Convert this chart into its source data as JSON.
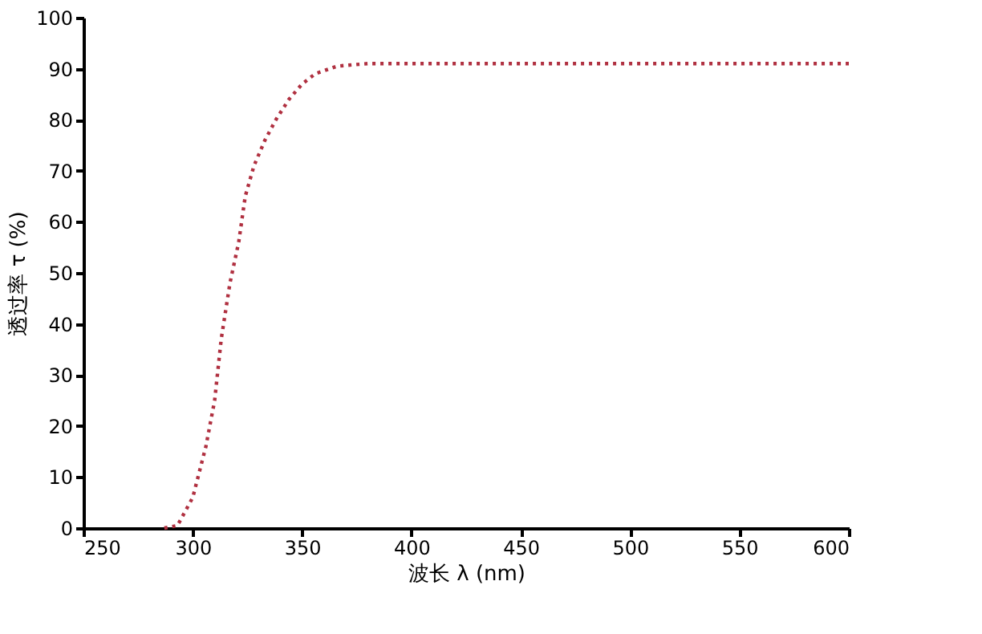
{
  "chart_data": {
    "type": "line",
    "xlabel": "波长 λ (nm)",
    "ylabel": "透过率 τ (%)",
    "xlim": [
      250,
      600
    ],
    "xticks": [
      250,
      300,
      350,
      400,
      450,
      500,
      550,
      600
    ],
    "ylim": [
      0,
      100
    ],
    "yticks": [
      0,
      10,
      20,
      30,
      40,
      50,
      60,
      70,
      80,
      90,
      100
    ],
    "grid": false,
    "line_style": "dotted",
    "marker": "none",
    "series": [
      {
        "color": "#b03040",
        "x": [
          287,
          293,
          300,
          306,
          310,
          313,
          317,
          321,
          324,
          328,
          333,
          338,
          344,
          350,
          356,
          366,
          380,
          398,
          450,
          500,
          550,
          600
        ],
        "values": [
          0,
          0.5,
          6,
          16,
          25,
          37,
          48,
          56,
          65,
          71,
          76,
          80,
          84,
          87,
          89,
          90.5,
          91,
          91,
          91,
          91,
          91,
          91
        ]
      }
    ]
  }
}
